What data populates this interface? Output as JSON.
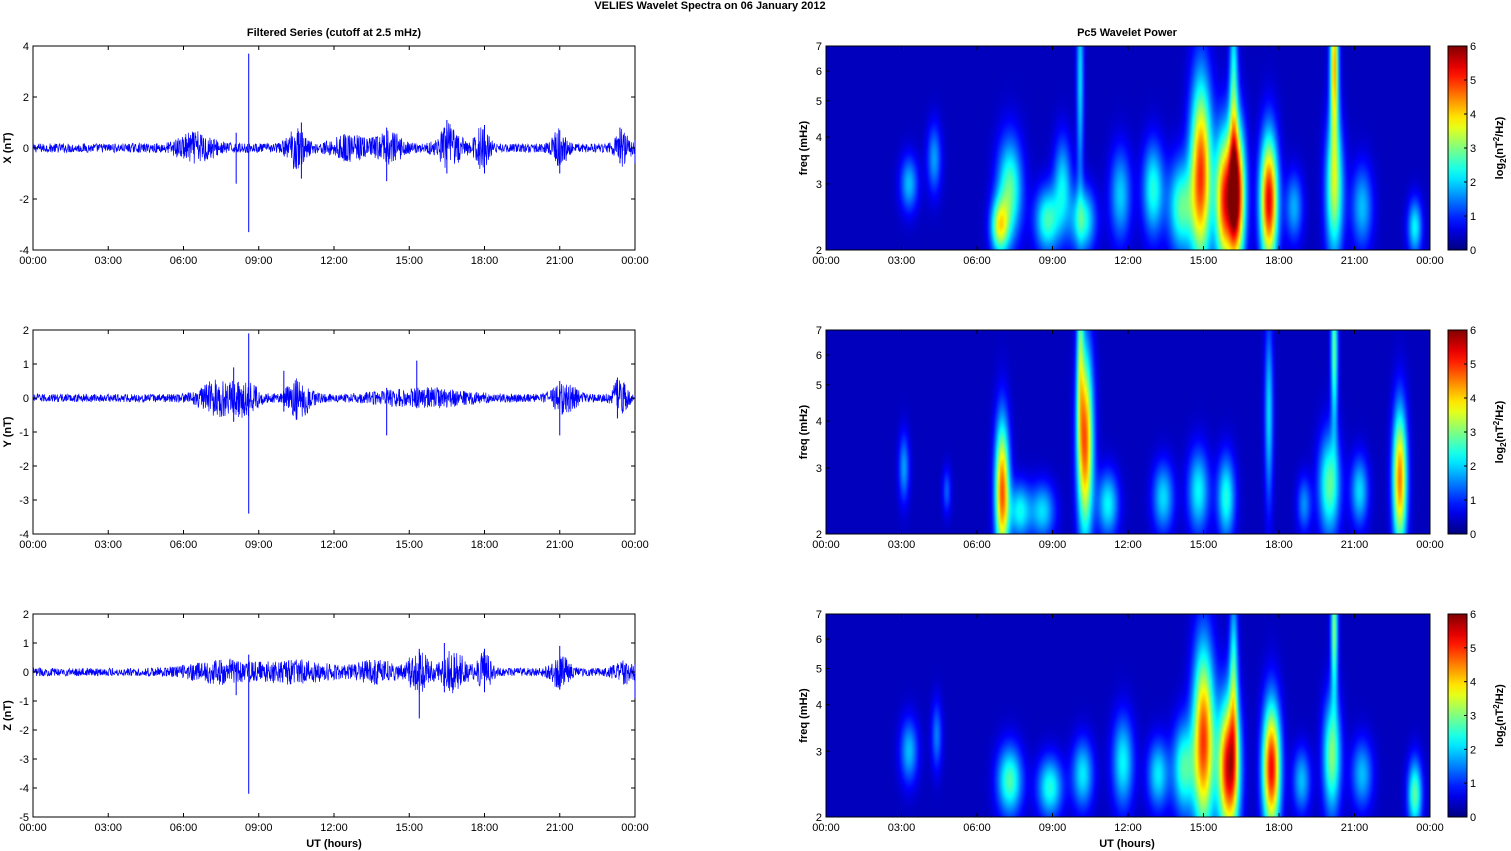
{
  "figure": {
    "title": "VELIES Wavelet Spectra on 06 January   2012",
    "left_column_title": "Filtered Series (cutoff at 2.5 mHz)",
    "right_column_title": "Pc5 Wavelet Power",
    "xlabel": "UT (hours)"
  },
  "colors": {
    "series_line": "#0000ff",
    "axes": "#000000",
    "tick_marks": "#000000",
    "colormap": "jet",
    "spectrogram_background": "#00008f"
  },
  "chart_data": [
    {
      "type": "line",
      "panel": "X",
      "ylabel": "X (nT)",
      "ylim": [
        -4,
        4
      ],
      "yticks": [
        -4,
        -2,
        0,
        2,
        4
      ],
      "xlim_hours": [
        0,
        24
      ],
      "xtick_labels": [
        "00:00",
        "03:00",
        "06:00",
        "09:00",
        "12:00",
        "15:00",
        "18:00",
        "21:00",
        "00:00"
      ],
      "noise_amplitude_nT": 0.18,
      "bursts": [
        {
          "t": 6.5,
          "amp": 0.5,
          "width": 0.8
        },
        {
          "t": 10.5,
          "amp": 0.7,
          "width": 0.4
        },
        {
          "t": 12.6,
          "amp": 0.4,
          "width": 0.8
        },
        {
          "t": 14.2,
          "amp": 0.5,
          "width": 0.6
        },
        {
          "t": 16.6,
          "amp": 0.8,
          "width": 0.5
        },
        {
          "t": 17.9,
          "amp": 0.8,
          "width": 0.3
        },
        {
          "t": 21.0,
          "amp": 0.7,
          "width": 0.3
        },
        {
          "t": 23.5,
          "amp": 0.6,
          "width": 0.3
        }
      ],
      "spikes": [
        {
          "t": 8.6,
          "hi": 3.7,
          "lo": -3.3
        },
        {
          "t": 8.1,
          "hi": 0.6,
          "lo": -1.4
        },
        {
          "t": 10.7,
          "hi": 1.0,
          "lo": -1.2
        },
        {
          "t": 14.1,
          "hi": 0.8,
          "lo": -1.3
        },
        {
          "t": 16.5,
          "hi": 1.1,
          "lo": -1.0
        },
        {
          "t": 18.0,
          "hi": 0.9,
          "lo": -1.0
        },
        {
          "t": 21.0,
          "hi": 0.7,
          "lo": -1.0
        },
        {
          "t": 23.4,
          "hi": 0.8,
          "lo": -0.6
        },
        {
          "t": 24.0,
          "hi": 0.3,
          "lo": -0.6
        }
      ]
    },
    {
      "type": "line",
      "panel": "Y",
      "ylabel": "Y (nT)",
      "ylim": [
        -4,
        2
      ],
      "yticks": [
        -4,
        -3,
        -2,
        -1,
        0,
        1,
        2
      ],
      "xlim_hours": [
        0,
        24
      ],
      "xtick_labels": [
        "00:00",
        "03:00",
        "06:00",
        "09:00",
        "12:00",
        "15:00",
        "18:00",
        "21:00",
        "00:00"
      ],
      "noise_amplitude_nT": 0.12,
      "bursts": [
        {
          "t": 7.4,
          "amp": 0.45,
          "width": 0.8
        },
        {
          "t": 8.5,
          "amp": 0.4,
          "width": 0.5
        },
        {
          "t": 10.6,
          "amp": 0.55,
          "width": 0.5
        },
        {
          "t": 15.6,
          "amp": 0.2,
          "width": 2.0
        },
        {
          "t": 21.2,
          "amp": 0.4,
          "width": 0.5
        },
        {
          "t": 23.4,
          "amp": 0.5,
          "width": 0.3
        }
      ],
      "spikes": [
        {
          "t": 8.6,
          "hi": 1.9,
          "lo": -3.4
        },
        {
          "t": 8.0,
          "hi": 0.9,
          "lo": -0.7
        },
        {
          "t": 10.0,
          "hi": 0.8,
          "lo": -0.4
        },
        {
          "t": 14.1,
          "hi": 0.3,
          "lo": -1.1
        },
        {
          "t": 15.3,
          "hi": 1.1,
          "lo": -0.3
        },
        {
          "t": 21.0,
          "hi": 0.5,
          "lo": -1.1
        },
        {
          "t": 23.3,
          "hi": 0.6,
          "lo": -0.6
        }
      ]
    },
    {
      "type": "line",
      "panel": "Z",
      "ylabel": "Z (nT)",
      "ylim": [
        -5,
        2
      ],
      "yticks": [
        -5,
        -4,
        -3,
        -2,
        -1,
        0,
        1,
        2
      ],
      "xlim_hours": [
        0,
        24
      ],
      "xtick_labels": [
        "00:00",
        "03:00",
        "06:00",
        "09:00",
        "12:00",
        "15:00",
        "18:00",
        "21:00",
        "00:00"
      ],
      "noise_amplitude_nT": 0.14,
      "bursts": [
        {
          "t": 7.5,
          "amp": 0.3,
          "width": 1.5
        },
        {
          "t": 10.5,
          "amp": 0.3,
          "width": 1.5
        },
        {
          "t": 13.7,
          "amp": 0.3,
          "width": 1.0
        },
        {
          "t": 15.4,
          "amp": 0.6,
          "width": 0.5
        },
        {
          "t": 16.8,
          "amp": 0.7,
          "width": 0.5
        },
        {
          "t": 18.0,
          "amp": 0.6,
          "width": 0.3
        },
        {
          "t": 21.0,
          "amp": 0.5,
          "width": 0.4
        },
        {
          "t": 23.6,
          "amp": 0.3,
          "width": 0.5
        }
      ],
      "spikes": [
        {
          "t": 8.6,
          "hi": 0.6,
          "lo": -4.2
        },
        {
          "t": 8.1,
          "hi": 0.3,
          "lo": -0.8
        },
        {
          "t": 15.4,
          "hi": 0.8,
          "lo": -1.6
        },
        {
          "t": 16.4,
          "hi": 1.0,
          "lo": -0.7
        },
        {
          "t": 18.0,
          "hi": 0.8,
          "lo": -0.7
        },
        {
          "t": 21.0,
          "hi": 0.9,
          "lo": -0.6
        },
        {
          "t": 24.0,
          "hi": 0.2,
          "lo": -0.9
        }
      ]
    },
    {
      "type": "heatmap",
      "panel": "X",
      "ylabel": "freq (mHz)",
      "yscale": "log",
      "ylim_mHz": [
        2,
        7
      ],
      "yticks": [
        2,
        3,
        4,
        5,
        6,
        7
      ],
      "xlim_hours": [
        0,
        24
      ],
      "xtick_labels": [
        "00:00",
        "03:00",
        "06:00",
        "09:00",
        "12:00",
        "15:00",
        "18:00",
        "21:00",
        "00:00"
      ],
      "colorbar_label": "log2(nT^2/Hz)",
      "clim": [
        0,
        6
      ],
      "colorbar_ticks": [
        0,
        1,
        2,
        3,
        4,
        5,
        6
      ],
      "blobs": [
        {
          "t": 3.3,
          "f": 3.0,
          "sw": 0.25,
          "sf": 0.12,
          "a": 1.6
        },
        {
          "t": 4.3,
          "f": 3.5,
          "sw": 0.2,
          "sf": 0.15,
          "a": 1.4
        },
        {
          "t": 6.9,
          "f": 2.3,
          "sw": 0.25,
          "sf": 0.12,
          "a": 3.0
        },
        {
          "t": 7.3,
          "f": 2.9,
          "sw": 0.35,
          "sf": 0.22,
          "a": 2.6
        },
        {
          "t": 8.8,
          "f": 2.4,
          "sw": 0.35,
          "sf": 0.14,
          "a": 2.4
        },
        {
          "t": 9.4,
          "f": 3.0,
          "sw": 0.25,
          "sf": 0.2,
          "a": 1.8
        },
        {
          "t": 10.2,
          "f": 2.4,
          "sw": 0.35,
          "sf": 0.14,
          "a": 2.3
        },
        {
          "t": 10.1,
          "f": 5.8,
          "sw": 0.1,
          "sf": 0.5,
          "a": 1.8
        },
        {
          "t": 11.7,
          "f": 2.8,
          "sw": 0.3,
          "sf": 0.2,
          "a": 1.7
        },
        {
          "t": 13.0,
          "f": 2.9,
          "sw": 0.3,
          "sf": 0.2,
          "a": 2.2
        },
        {
          "t": 14.1,
          "f": 2.6,
          "sw": 0.35,
          "sf": 0.2,
          "a": 2.5
        },
        {
          "t": 14.9,
          "f": 3.2,
          "sw": 0.3,
          "sf": 0.4,
          "a": 4.8
        },
        {
          "t": 15.8,
          "f": 2.7,
          "sw": 0.25,
          "sf": 0.3,
          "a": 4.2
        },
        {
          "t": 16.3,
          "f": 2.8,
          "sw": 0.25,
          "sf": 0.3,
          "a": 5.6
        },
        {
          "t": 16.2,
          "f": 5.0,
          "sw": 0.12,
          "sf": 0.5,
          "a": 2.2
        },
        {
          "t": 17.6,
          "f": 2.7,
          "sw": 0.25,
          "sf": 0.28,
          "a": 5.3
        },
        {
          "t": 18.6,
          "f": 2.6,
          "sw": 0.25,
          "sf": 0.15,
          "a": 1.5
        },
        {
          "t": 20.2,
          "f": 2.9,
          "sw": 0.25,
          "sf": 0.3,
          "a": 3.0
        },
        {
          "t": 20.2,
          "f": 6.3,
          "sw": 0.12,
          "sf": 0.35,
          "a": 4.0
        },
        {
          "t": 21.3,
          "f": 2.6,
          "sw": 0.3,
          "sf": 0.18,
          "a": 1.6
        },
        {
          "t": 23.4,
          "f": 2.3,
          "sw": 0.2,
          "sf": 0.12,
          "a": 2.0
        }
      ]
    },
    {
      "type": "heatmap",
      "panel": "Y",
      "ylabel": "freq (mHz)",
      "yscale": "log",
      "ylim_mHz": [
        2,
        7
      ],
      "yticks": [
        2,
        3,
        4,
        5,
        6,
        7
      ],
      "xlim_hours": [
        0,
        24
      ],
      "xtick_labels": [
        "00:00",
        "03:00",
        "06:00",
        "09:00",
        "12:00",
        "15:00",
        "18:00",
        "21:00",
        "00:00"
      ],
      "colorbar_label": "log2(nT^2/Hz)",
      "clim": [
        0,
        6
      ],
      "colorbar_ticks": [
        0,
        1,
        2,
        3,
        4,
        5,
        6
      ],
      "blobs": [
        {
          "t": 3.1,
          "f": 3.0,
          "sw": 0.15,
          "sf": 0.15,
          "a": 1.4
        },
        {
          "t": 4.8,
          "f": 2.6,
          "sw": 0.12,
          "sf": 0.1,
          "a": 1.0
        },
        {
          "t": 7.0,
          "f": 2.6,
          "sw": 0.2,
          "sf": 0.3,
          "a": 4.6
        },
        {
          "t": 7.7,
          "f": 2.3,
          "sw": 0.3,
          "sf": 0.12,
          "a": 2.0
        },
        {
          "t": 8.6,
          "f": 2.3,
          "sw": 0.35,
          "sf": 0.12,
          "a": 1.8
        },
        {
          "t": 10.3,
          "f": 3.5,
          "sw": 0.22,
          "sf": 0.4,
          "a": 4.6
        },
        {
          "t": 10.1,
          "f": 6.3,
          "sw": 0.1,
          "sf": 0.4,
          "a": 2.0
        },
        {
          "t": 11.2,
          "f": 2.4,
          "sw": 0.3,
          "sf": 0.14,
          "a": 2.0
        },
        {
          "t": 13.4,
          "f": 2.5,
          "sw": 0.3,
          "sf": 0.15,
          "a": 1.8
        },
        {
          "t": 14.8,
          "f": 2.6,
          "sw": 0.3,
          "sf": 0.18,
          "a": 2.0
        },
        {
          "t": 15.9,
          "f": 2.5,
          "sw": 0.25,
          "sf": 0.18,
          "a": 2.2
        },
        {
          "t": 17.6,
          "f": 4.2,
          "sw": 0.12,
          "sf": 0.4,
          "a": 1.8
        },
        {
          "t": 19.0,
          "f": 2.4,
          "sw": 0.2,
          "sf": 0.12,
          "a": 1.3
        },
        {
          "t": 20.0,
          "f": 2.7,
          "sw": 0.3,
          "sf": 0.22,
          "a": 2.6
        },
        {
          "t": 20.2,
          "f": 6.2,
          "sw": 0.1,
          "sf": 0.35,
          "a": 2.6
        },
        {
          "t": 21.2,
          "f": 2.6,
          "sw": 0.25,
          "sf": 0.15,
          "a": 1.8
        },
        {
          "t": 22.8,
          "f": 2.8,
          "sw": 0.2,
          "sf": 0.3,
          "a": 4.4
        }
      ]
    },
    {
      "type": "heatmap",
      "panel": "Z",
      "ylabel": "freq (mHz)",
      "yscale": "log",
      "ylim_mHz": [
        2,
        7
      ],
      "yticks": [
        2,
        3,
        4,
        5,
        6,
        7
      ],
      "xlim_hours": [
        0,
        24
      ],
      "xtick_labels": [
        "00:00",
        "03:00",
        "06:00",
        "09:00",
        "12:00",
        "15:00",
        "18:00",
        "21:00",
        "00:00"
      ],
      "colorbar_label": "log2(nT^2/Hz)",
      "clim": [
        0,
        6
      ],
      "colorbar_ticks": [
        0,
        1,
        2,
        3,
        4,
        5,
        6
      ],
      "blobs": [
        {
          "t": 3.3,
          "f": 3.0,
          "sw": 0.25,
          "sf": 0.14,
          "a": 1.6
        },
        {
          "t": 4.4,
          "f": 3.3,
          "sw": 0.15,
          "sf": 0.15,
          "a": 1.2
        },
        {
          "t": 7.3,
          "f": 2.5,
          "sw": 0.35,
          "sf": 0.15,
          "a": 2.5
        },
        {
          "t": 8.9,
          "f": 2.4,
          "sw": 0.35,
          "sf": 0.13,
          "a": 2.2
        },
        {
          "t": 10.2,
          "f": 2.6,
          "sw": 0.3,
          "sf": 0.15,
          "a": 1.9
        },
        {
          "t": 11.8,
          "f": 2.8,
          "sw": 0.3,
          "sf": 0.2,
          "a": 2.0
        },
        {
          "t": 13.2,
          "f": 2.6,
          "sw": 0.3,
          "sf": 0.15,
          "a": 1.9
        },
        {
          "t": 14.2,
          "f": 2.7,
          "sw": 0.3,
          "sf": 0.2,
          "a": 2.4
        },
        {
          "t": 15.0,
          "f": 3.2,
          "sw": 0.3,
          "sf": 0.4,
          "a": 4.8
        },
        {
          "t": 16.0,
          "f": 2.7,
          "sw": 0.3,
          "sf": 0.3,
          "a": 5.4
        },
        {
          "t": 16.2,
          "f": 4.6,
          "sw": 0.12,
          "sf": 0.4,
          "a": 2.2
        },
        {
          "t": 17.7,
          "f": 2.7,
          "sw": 0.25,
          "sf": 0.28,
          "a": 5.2
        },
        {
          "t": 18.9,
          "f": 2.5,
          "sw": 0.25,
          "sf": 0.14,
          "a": 1.6
        },
        {
          "t": 20.1,
          "f": 2.9,
          "sw": 0.25,
          "sf": 0.25,
          "a": 2.8
        },
        {
          "t": 20.2,
          "f": 6.4,
          "sw": 0.1,
          "sf": 0.3,
          "a": 2.8
        },
        {
          "t": 21.3,
          "f": 2.6,
          "sw": 0.3,
          "sf": 0.15,
          "a": 1.6
        },
        {
          "t": 23.4,
          "f": 2.3,
          "sw": 0.2,
          "sf": 0.15,
          "a": 2.6
        }
      ]
    }
  ]
}
